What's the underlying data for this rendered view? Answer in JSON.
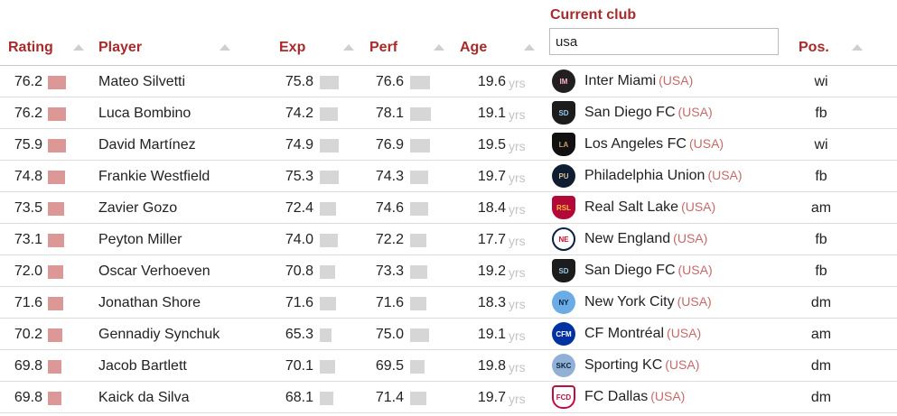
{
  "header": {
    "rating": "Rating",
    "player": "Player",
    "exp": "Exp",
    "perf": "Perf",
    "age": "Age",
    "club_title": "Current club",
    "club_filter_value": "usa",
    "pos": "Pos."
  },
  "colors": {
    "header_text": "#a82a2a",
    "rating_bar": "#dc9797",
    "metric_bar": "#d6d6d6",
    "country_text": "#c46a6a"
  },
  "scales": {
    "rating_max": 100,
    "exp_max": 100,
    "perf_max": 100
  },
  "rows": [
    {
      "rating": "76.2",
      "player": "Mateo Silvetti",
      "exp": "75.8",
      "perf": "76.6",
      "age": "19.6",
      "yrs": "yrs",
      "club": "Inter Miami",
      "country": "(USA)",
      "pos": "wi",
      "icon": "inter-miami-crest-icon"
    },
    {
      "rating": "76.2",
      "player": "Luca Bombino",
      "exp": "74.2",
      "perf": "78.1",
      "age": "19.1",
      "yrs": "yrs",
      "club": "San Diego FC",
      "country": "(USA)",
      "pos": "fb",
      "icon": "san-diego-fc-crest-icon"
    },
    {
      "rating": "75.9",
      "player": "David Martínez",
      "exp": "74.9",
      "perf": "76.9",
      "age": "19.5",
      "yrs": "yrs",
      "club": "Los Angeles FC",
      "country": "(USA)",
      "pos": "wi",
      "icon": "lafc-crest-icon"
    },
    {
      "rating": "74.8",
      "player": "Frankie Westfield",
      "exp": "75.3",
      "perf": "74.3",
      "age": "19.7",
      "yrs": "yrs",
      "club": "Philadelphia Union",
      "country": "(USA)",
      "pos": "fb",
      "icon": "philadelphia-union-crest-icon"
    },
    {
      "rating": "73.5",
      "player": "Zavier Gozo",
      "exp": "72.4",
      "perf": "74.6",
      "age": "18.4",
      "yrs": "yrs",
      "club": "Real Salt Lake",
      "country": "(USA)",
      "pos": "am",
      "icon": "real-salt-lake-crest-icon"
    },
    {
      "rating": "73.1",
      "player": "Peyton Miller",
      "exp": "74.0",
      "perf": "72.2",
      "age": "17.7",
      "yrs": "yrs",
      "club": "New England",
      "country": "(USA)",
      "pos": "fb",
      "icon": "new-england-crest-icon"
    },
    {
      "rating": "72.0",
      "player": "Oscar Verhoeven",
      "exp": "70.8",
      "perf": "73.3",
      "age": "19.2",
      "yrs": "yrs",
      "club": "San Diego FC",
      "country": "(USA)",
      "pos": "fb",
      "icon": "san-diego-fc-crest-icon"
    },
    {
      "rating": "71.6",
      "player": "Jonathan Shore",
      "exp": "71.6",
      "perf": "71.6",
      "age": "18.3",
      "yrs": "yrs",
      "club": "New York City",
      "country": "(USA)",
      "pos": "dm",
      "icon": "nycfc-crest-icon"
    },
    {
      "rating": "70.2",
      "player": "Gennadiy Synchuk",
      "exp": "65.3",
      "perf": "75.0",
      "age": "19.1",
      "yrs": "yrs",
      "club": "CF Montréal",
      "country": "(USA)",
      "pos": "am",
      "icon": "cf-montreal-crest-icon"
    },
    {
      "rating": "69.8",
      "player": "Jacob Bartlett",
      "exp": "70.1",
      "perf": "69.5",
      "age": "19.8",
      "yrs": "yrs",
      "club": "Sporting KC",
      "country": "(USA)",
      "pos": "dm",
      "icon": "sporting-kc-crest-icon"
    },
    {
      "rating": "69.8",
      "player": "Kaick da Silva",
      "exp": "68.1",
      "perf": "71.4",
      "age": "19.7",
      "yrs": "yrs",
      "club": "FC Dallas",
      "country": "(USA)",
      "pos": "dm",
      "icon": "fc-dallas-crest-icon"
    }
  ]
}
